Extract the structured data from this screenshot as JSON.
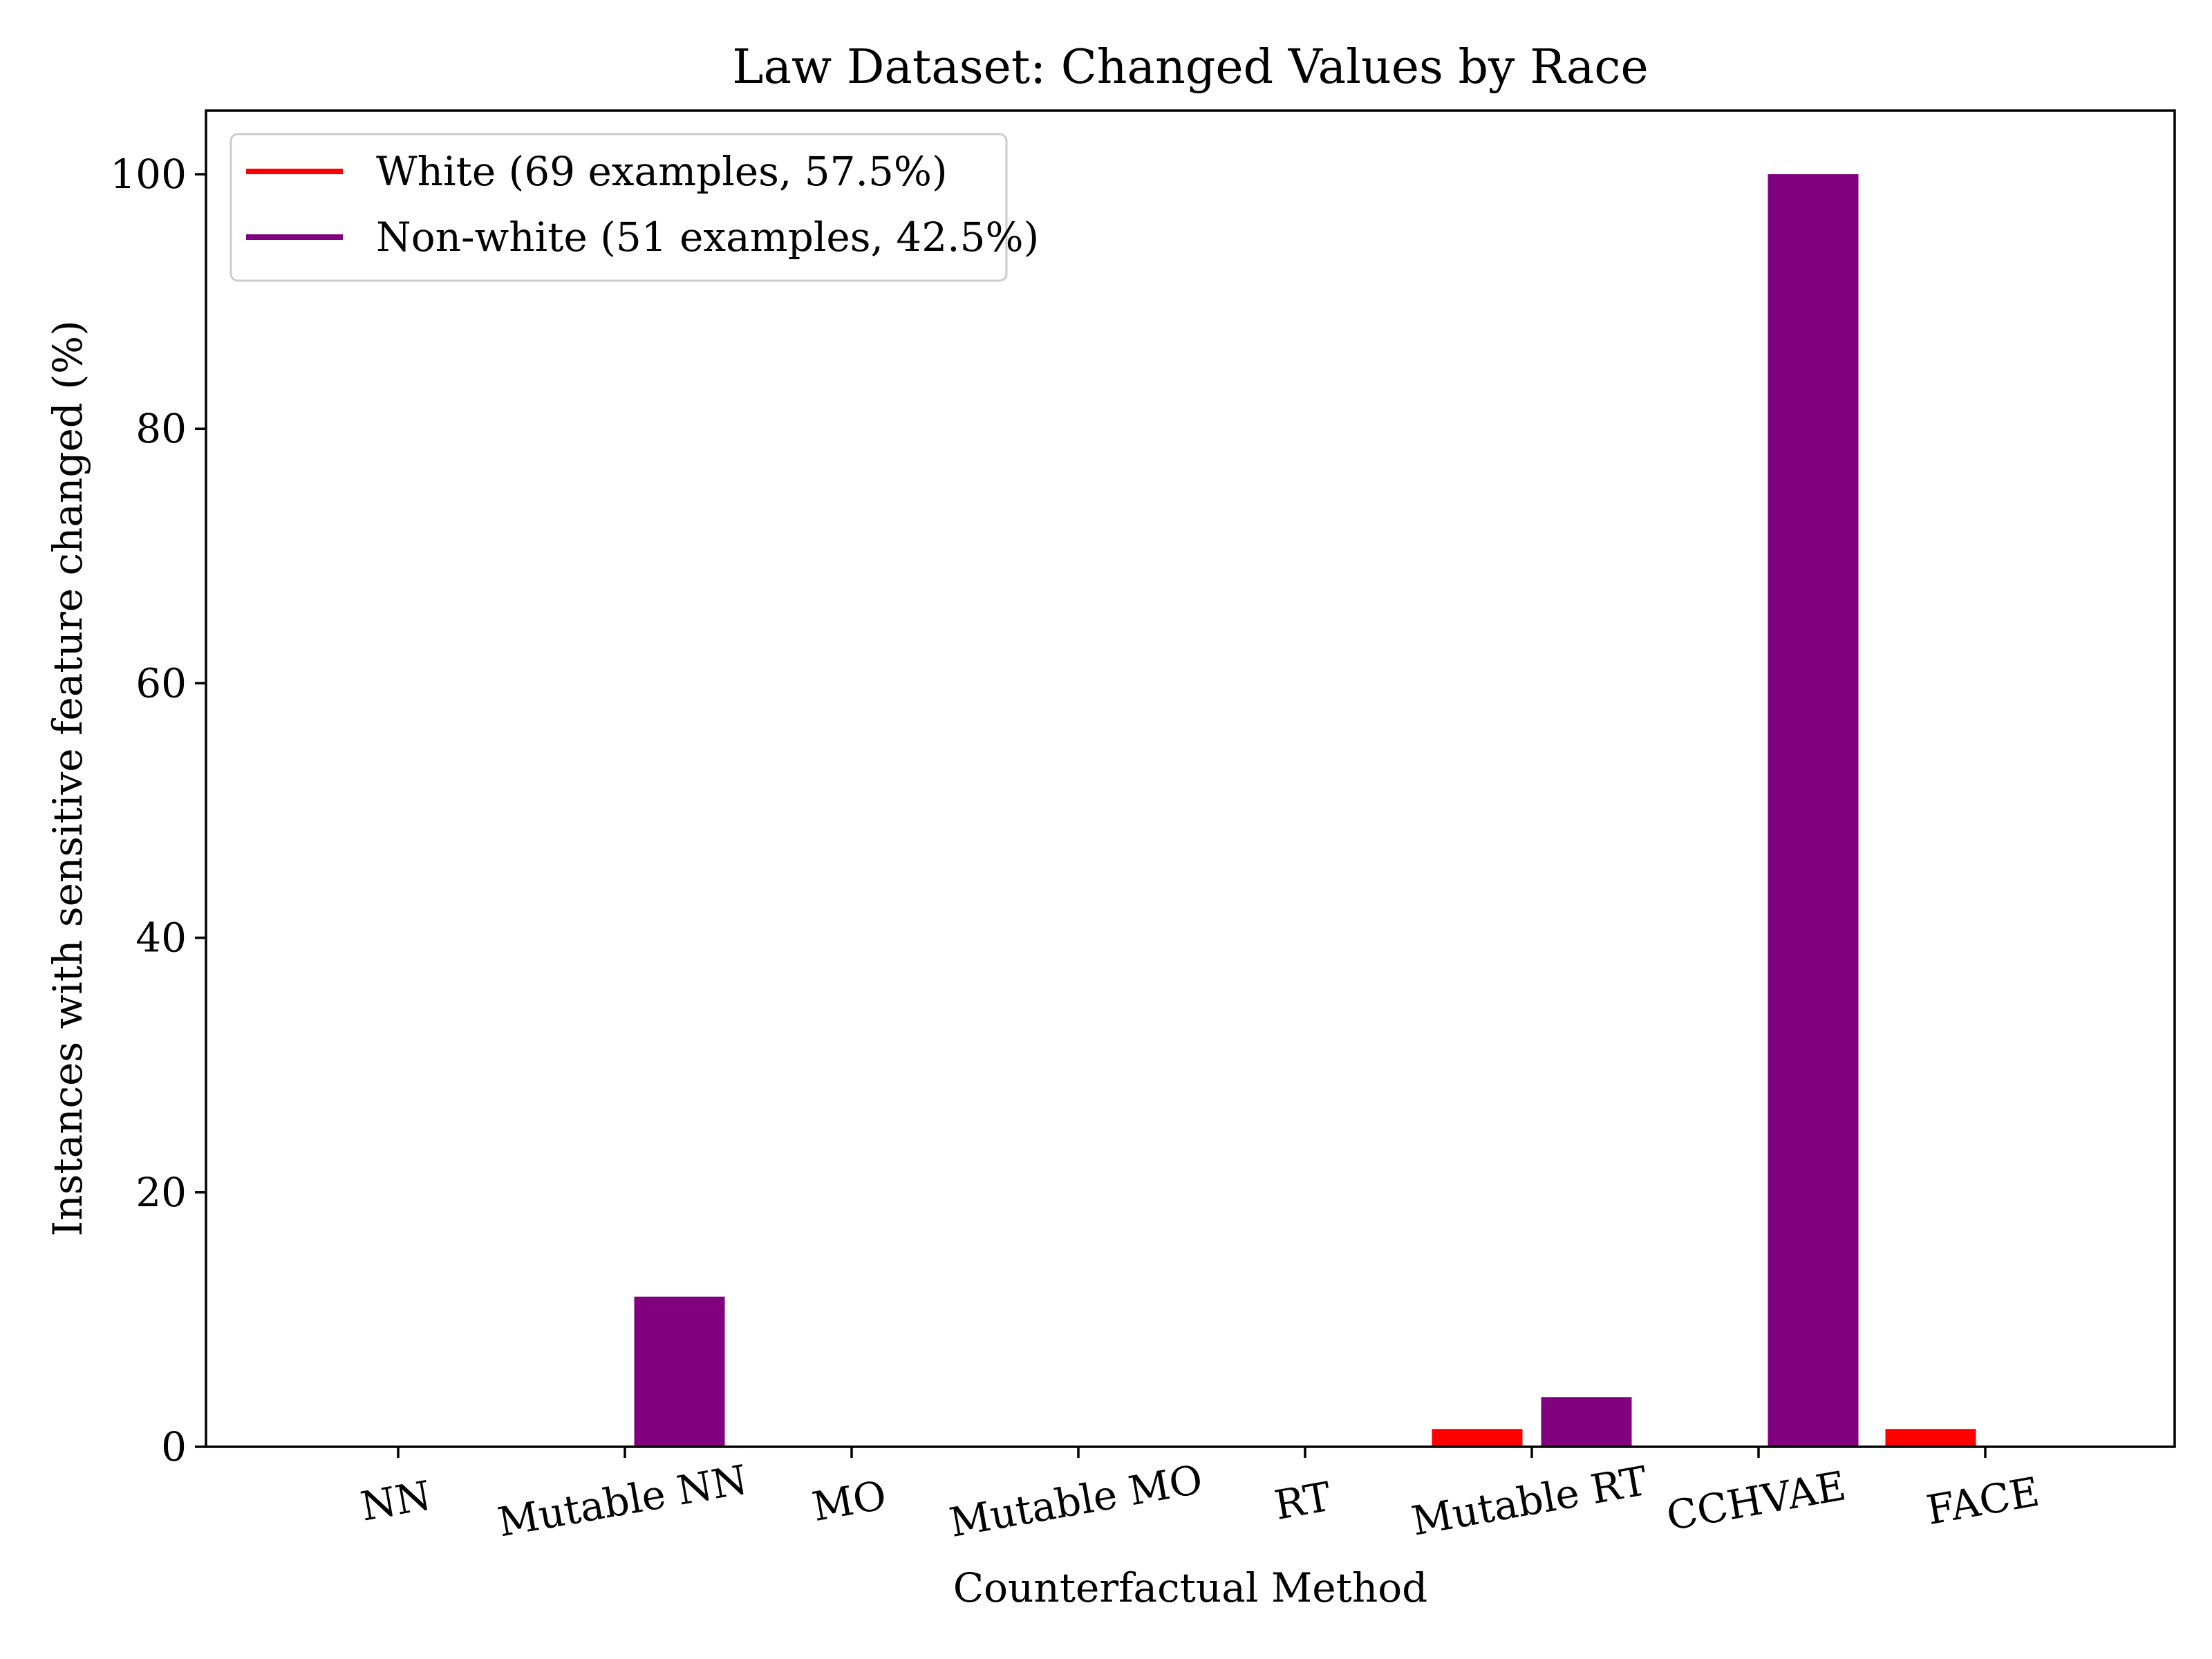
{
  "chart_data": {
    "type": "bar",
    "title": "Law Dataset: Changed Values by Race",
    "xlabel": "Counterfactual Method",
    "ylabel": "Instances with sensitive feature changed (%)",
    "categories": [
      "NN",
      "Mutable NN",
      "MO",
      "Mutable MO",
      "RT",
      "Mutable RT",
      "CCHVAE",
      "FACE"
    ],
    "ylim": [
      0,
      105
    ],
    "yticks": [
      0,
      20,
      40,
      60,
      80,
      100
    ],
    "grid": false,
    "legend_position": "top-left",
    "series": [
      {
        "name": "White (69 examples, 57.5%)",
        "color": "#ff0000",
        "values": [
          0,
          0,
          0,
          0,
          0,
          1.4,
          0,
          1.4
        ]
      },
      {
        "name": "Non-white (51 examples, 42.5%)",
        "color": "#800080",
        "values": [
          0,
          11.8,
          0,
          0,
          0,
          3.9,
          100,
          0
        ]
      }
    ]
  }
}
